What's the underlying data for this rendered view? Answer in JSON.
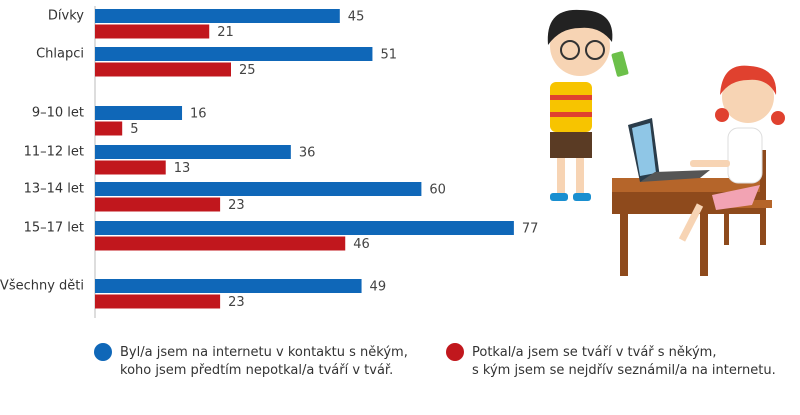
{
  "chart_data": {
    "type": "bar",
    "orientation": "horizontal",
    "categories": [
      "Dívky",
      "Chlapci",
      "9–10 let",
      "11–12 let",
      "13–14 let",
      "15–17 let",
      "Všechny děti"
    ],
    "series": [
      {
        "name": "Byl/a jsem na internetu v kontaktu s někým,\nkoho jsem předtím nepotkal/a tváří v tvář.",
        "color": "#0f67b8",
        "values": [
          45,
          51,
          16,
          36,
          60,
          77,
          49
        ]
      },
      {
        "name": "Potkal/a jsem se tváří v tvář s někým,\ns kým jsem se nejdřív seznámil/a na internetu.",
        "color": "#c1171d",
        "values": [
          21,
          25,
          5,
          13,
          23,
          46,
          23
        ]
      }
    ]
  }
}
